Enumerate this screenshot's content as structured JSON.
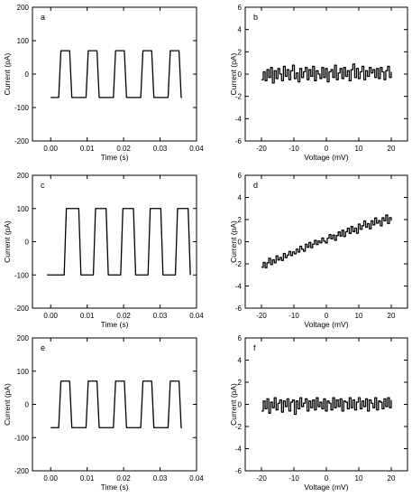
{
  "chart_data": [
    {
      "panel_label": "a",
      "type": "line",
      "xlabel": "Time (s)",
      "ylabel": "Current (pA)",
      "xlim": [
        -0.005,
        0.04
      ],
      "ylim": [
        -200,
        200
      ],
      "xticks": [
        0.0,
        0.01,
        0.02,
        0.03,
        0.04
      ],
      "xtick_labels": [
        "0.00",
        "0.01",
        "0.02",
        "0.03",
        "0.04"
      ],
      "yticks": [
        -200,
        -100,
        0,
        100,
        200
      ],
      "ytick_labels": [
        "-200",
        "-100",
        "0",
        "100",
        "200"
      ],
      "series": [
        {
          "signal": "square-wave",
          "x_start": 0.0,
          "x_end": 0.036,
          "high_level": 70,
          "low_level": -70,
          "rise_times": [
            0.0025,
            0.01,
            0.0175,
            0.025,
            0.0325
          ],
          "fall_times": [
            0.0055,
            0.013,
            0.0205,
            0.028,
            0.0355
          ]
        }
      ]
    },
    {
      "panel_label": "b",
      "type": "line",
      "xlabel": "Voltage (mV)",
      "ylabel": "Current (pA)",
      "xlim": [
        -25,
        25
      ],
      "ylim": [
        -6,
        6
      ],
      "xticks": [
        -20,
        -10,
        0,
        10,
        20
      ],
      "xtick_labels": [
        "-20",
        "-10",
        "0",
        "10",
        "20"
      ],
      "yticks": [
        -6,
        -4,
        -2,
        0,
        2,
        4,
        6
      ],
      "ytick_labels": [
        "-6",
        "-4",
        "-2",
        "0",
        "2",
        "4",
        "6"
      ],
      "series": [
        {
          "signal": "noisy-iv",
          "x_start": -20,
          "x_end": 20,
          "slope": 0.0,
          "intercept": 0.0,
          "y_values": [
            -0.5,
            0.2,
            -0.6,
            0.4,
            -0.3,
            0.6,
            -0.8,
            0.3,
            -0.4,
            0.5,
            0.0,
            -0.6,
            0.7,
            -0.2,
            0.4,
            -0.5,
            0.3,
            0.8,
            -0.4,
            0.1,
            -0.7,
            0.5,
            -0.3,
            0.2,
            0.6,
            -0.5,
            0.4,
            -0.2,
            0.7,
            -0.6,
            0.3,
            0.0,
            -0.4,
            0.6,
            -0.3,
            0.5,
            -0.7,
            0.2,
            0.4,
            -0.3,
            0.8,
            -0.5,
            0.1,
            0.5,
            -0.4,
            0.6,
            -0.2,
            0.3,
            -0.6,
            0.4,
            0.9,
            -0.3,
            0.5,
            -0.4,
            0.2,
            0.7,
            -0.5,
            0.3,
            -0.2,
            0.6,
            0.1,
            0.4,
            -0.3,
            0.5,
            -0.4,
            0.6,
            0.2,
            -0.5,
            0.3,
            0.7,
            -0.3,
            0.2
          ]
        }
      ]
    },
    {
      "panel_label": "c",
      "type": "line",
      "xlabel": "Time (s)",
      "ylabel": "Current (pA)",
      "xlim": [
        -0.005,
        0.04
      ],
      "ylim": [
        -200,
        200
      ],
      "xticks": [
        0.0,
        0.01,
        0.02,
        0.03,
        0.04
      ],
      "xtick_labels": [
        "0.00",
        "0.01",
        "0.02",
        "0.03",
        "0.04"
      ],
      "yticks": [
        -200,
        -100,
        0,
        100,
        200
      ],
      "ytick_labels": [
        "-200",
        "-100",
        "0",
        "100",
        "200"
      ],
      "series": [
        {
          "signal": "square-wave",
          "x_start": -0.001,
          "x_end": 0.038,
          "high_level": 100,
          "low_level": -100,
          "rise_times": [
            0.004,
            0.012,
            0.0195,
            0.027,
            0.0345
          ],
          "fall_times": [
            0.008,
            0.0155,
            0.023,
            0.0305,
            0.038
          ]
        }
      ]
    },
    {
      "panel_label": "d",
      "type": "line",
      "xlabel": "Voltage (mV)",
      "ylabel": "Current (pA)",
      "xlim": [
        -25,
        25
      ],
      "ylim": [
        -6,
        6
      ],
      "xticks": [
        -20,
        -10,
        0,
        10,
        20
      ],
      "xtick_labels": [
        "-20",
        "-10",
        "0",
        "10",
        "20"
      ],
      "yticks": [
        -6,
        -4,
        -2,
        0,
        2,
        4,
        6
      ],
      "ytick_labels": [
        "-6",
        "-4",
        "-2",
        "0",
        "2",
        "4",
        "6"
      ],
      "series": [
        {
          "signal": "noisy-iv",
          "x_start": -20,
          "x_end": 20,
          "slope": 0.05,
          "intercept": 0.0,
          "y_values": [
            -1.3,
            -0.9,
            -1.4,
            -1.0,
            -0.6,
            -1.2,
            -0.8,
            -1.1,
            -0.5,
            -0.9,
            -0.7,
            -1.0,
            -0.4,
            -0.8,
            -0.6,
            -0.3,
            -0.7,
            -0.4,
            -0.6,
            -0.2,
            -0.5,
            0.0,
            -0.3,
            -0.5,
            0.1,
            -0.2,
            0.2,
            -0.3,
            0.0,
            0.3,
            -0.1,
            0.2,
            0.0,
            0.4,
            0.1,
            -0.1,
            0.3,
            0.6,
            0.2,
            0.5,
            0.0,
            0.4,
            0.7,
            0.3,
            0.8,
            0.2,
            0.6,
            0.9,
            0.4,
            1.0,
            0.5,
            0.8,
            0.3,
            1.1,
            0.6,
            0.9,
            1.3,
            0.7,
            1.0,
            0.5,
            1.2,
            0.8,
            1.4,
            0.9,
            1.1,
            0.6,
            1.3,
            1.0,
            1.5,
            0.7,
            1.2,
            0.9
          ]
        }
      ]
    },
    {
      "panel_label": "e",
      "type": "line",
      "xlabel": "Time (s)",
      "ylabel": "Current (pA)",
      "xlim": [
        -0.005,
        0.04
      ],
      "ylim": [
        -200,
        200
      ],
      "xticks": [
        0.0,
        0.01,
        0.02,
        0.03,
        0.04
      ],
      "xtick_labels": [
        "0.00",
        "0.01",
        "0.02",
        "0.03",
        "0.04"
      ],
      "yticks": [
        -200,
        -100,
        0,
        100,
        200
      ],
      "ytick_labels": [
        "-200",
        "-100",
        "0",
        "100",
        "200"
      ],
      "series": [
        {
          "signal": "square-wave",
          "x_start": 0.0,
          "x_end": 0.036,
          "high_level": 70,
          "low_level": -70,
          "rise_times": [
            0.0025,
            0.01,
            0.0175,
            0.025,
            0.0325
          ],
          "fall_times": [
            0.0055,
            0.013,
            0.0205,
            0.028,
            0.0355
          ]
        }
      ]
    },
    {
      "panel_label": "f",
      "type": "line",
      "xlabel": "Voltage (mV)",
      "ylabel": "Current (pA)",
      "xlim": [
        -25,
        25
      ],
      "ylim": [
        -6,
        6
      ],
      "xticks": [
        -20,
        -10,
        0,
        10,
        20
      ],
      "xtick_labels": [
        "-20",
        "-10",
        "0",
        "10",
        "20"
      ],
      "yticks": [
        -6,
        -4,
        -2,
        0,
        2,
        4,
        6
      ],
      "ytick_labels": [
        "-6",
        "-4",
        "-2",
        "0",
        "2",
        "4",
        "6"
      ],
      "series": [
        {
          "signal": "noisy-iv",
          "x_start": -20,
          "x_end": 20,
          "slope": 0.0,
          "intercept": 0.0,
          "y_values": [
            -0.6,
            0.3,
            -0.4,
            0.5,
            -0.8,
            0.2,
            -0.3,
            0.6,
            -0.5,
            0.1,
            0.4,
            -0.7,
            0.3,
            -0.2,
            0.5,
            -0.6,
            0.2,
            0.4,
            -0.9,
            0.3,
            -0.4,
            0.6,
            -0.2,
            0.1,
            0.5,
            -0.6,
            0.3,
            -0.3,
            0.4,
            -0.5,
            0.6,
            -0.2,
            0.2,
            -0.4,
            0.5,
            -0.6,
            0.3,
            0.1,
            -0.5,
            0.6,
            -0.3,
            0.4,
            -0.2,
            0.5,
            -0.6,
            0.3,
            0.2,
            -0.4,
            0.6,
            -0.3,
            0.4,
            -0.5,
            0.2,
            0.6,
            -0.4,
            0.3,
            -0.2,
            0.5,
            -0.6,
            0.4,
            0.1,
            -0.3,
            0.6,
            -0.5,
            0.3,
            0.2,
            -0.4,
            0.5,
            -0.2,
            0.6,
            -0.3,
            0.4
          ]
        }
      ]
    }
  ]
}
